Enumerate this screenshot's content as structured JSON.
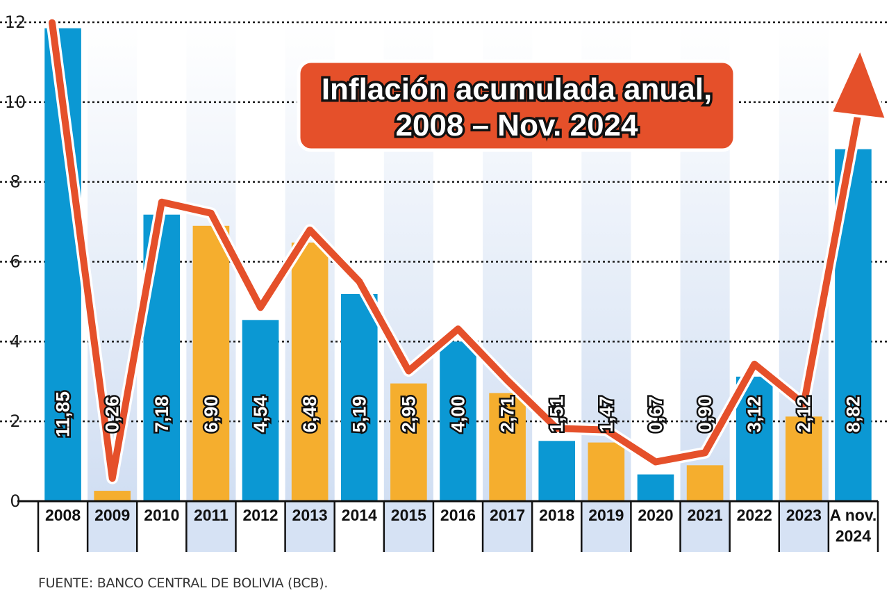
{
  "chart_data": {
    "type": "bar",
    "title": "Inflación acumulada anual, 2008 – Nov. 2024",
    "title_lines": [
      "Inflación acumulada anual,",
      "2008 – Nov. 2024"
    ],
    "categories": [
      "2008",
      "2009",
      "2010",
      "2011",
      "2012",
      "2013",
      "2014",
      "2015",
      "2016",
      "2017",
      "2018",
      "2019",
      "2020",
      "2021",
      "2022",
      "2023",
      "A nov. 2024"
    ],
    "values": [
      11.85,
      0.26,
      7.18,
      6.9,
      4.54,
      6.48,
      5.19,
      2.95,
      4.0,
      2.71,
      1.51,
      1.47,
      0.67,
      0.9,
      3.12,
      2.12,
      8.82
    ],
    "value_labels": [
      "11,85",
      "0,26",
      "7,18",
      "6,90",
      "4,54",
      "6,48",
      "5,19",
      "2,95",
      "4,00",
      "2,71",
      "1,51",
      "1,47",
      "0,67",
      "0,90",
      "3,12",
      "2,12",
      "8,82"
    ],
    "bar_colors": [
      "#0b98d3",
      "#f5ae2e",
      "#0b98d3",
      "#f5ae2e",
      "#0b98d3",
      "#f5ae2e",
      "#0b98d3",
      "#f5ae2e",
      "#0b98d3",
      "#f5ae2e",
      "#0b98d3",
      "#f5ae2e",
      "#0b98d3",
      "#f5ae2e",
      "#0b98d3",
      "#f5ae2e",
      "#0b98d3"
    ],
    "yticks": [
      0,
      2,
      4,
      6,
      8,
      10,
      12
    ],
    "ylim": [
      0,
      12
    ],
    "xlabel": "",
    "ylabel": "",
    "grid": true,
    "trend_line": true,
    "colors": {
      "blue": "#0b98d3",
      "orange": "#f5ae2e",
      "trend": "#e5502a",
      "title_bg": "#e5502a",
      "stripe": "#d6e2f4"
    }
  },
  "source": "FUENTE: BANCO CENTRAL DE BOLIVIA (BCB)."
}
